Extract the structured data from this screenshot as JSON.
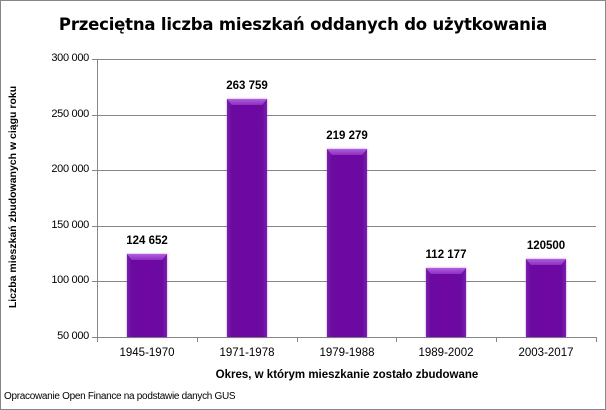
{
  "chart_data": {
    "type": "bar",
    "title": "Przeciętna liczba mieszkań oddanych do użytkowania",
    "xlabel": "Okres, w którym mieszkanie zostało zbudowane",
    "ylabel": "Liczba  mieszkań zbudowanych  w ciągu  roku",
    "categories": [
      "1945-1970",
      "1971-1978",
      "1979-1988",
      "1989-2002",
      "2003-2017"
    ],
    "values": [
      124652,
      263759,
      219279,
      112177,
      120500
    ],
    "value_labels": [
      "124 652",
      "263 759",
      "219 279",
      "112 177",
      "120500"
    ],
    "ylim": [
      50000,
      300000
    ],
    "yticks": [
      50000,
      100000,
      150000,
      200000,
      250000,
      300000
    ],
    "ytick_labels": [
      "50 000",
      "100 000",
      "150 000",
      "200 000",
      "250 000",
      "300 000"
    ],
    "grid": true,
    "legend": null,
    "bar_color": "#6f08a3",
    "source_note": "Opracowanie Open Finance na podstawie danych GUS"
  }
}
